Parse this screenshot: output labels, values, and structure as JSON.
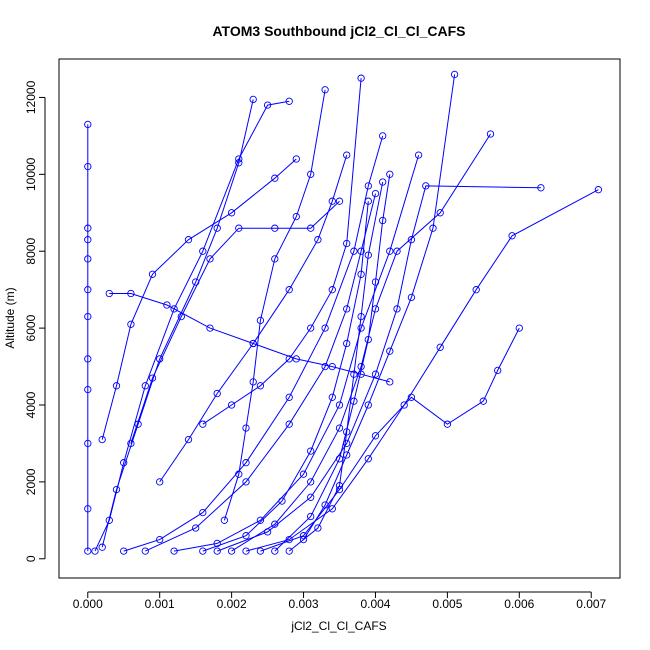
{
  "chart_data": {
    "type": "line",
    "title": "ATOM3 Southbound jCl2_Cl_Cl_CAFS",
    "xlabel": "jCl2_Cl_Cl_CAFS",
    "ylabel": "Altitude (m)",
    "xlim": [
      -0.0004,
      0.0074
    ],
    "ylim": [
      -500,
      13000
    ],
    "x_ticks": [
      "0.000",
      "0.001",
      "0.002",
      "0.003",
      "0.004",
      "0.005",
      "0.006",
      "0.007"
    ],
    "y_ticks": [
      "0",
      "2000",
      "4000",
      "6000",
      "8000",
      "10000",
      "12000"
    ],
    "series_color": "#0000ff",
    "markers": "open-circle",
    "series": [
      {
        "x": [
          0.0,
          0.0,
          0.0,
          0.0,
          0.0,
          0.0,
          0.0,
          0.0,
          0.0,
          0.0,
          0.0,
          0.0
        ],
        "y": [
          200,
          1300,
          3000,
          4400,
          5200,
          6300,
          7000,
          7800,
          8300,
          8600,
          10200,
          11300
        ]
      },
      {
        "x": [
          0.0001,
          0.0003,
          0.0005,
          0.0008,
          0.0012,
          0.0016,
          0.0021,
          0.0025,
          0.0028
        ],
        "y": [
          200,
          1000,
          2500,
          4500,
          6500,
          8000,
          10400,
          11800,
          11900
        ]
      },
      {
        "x": [
          0.0002,
          0.0004,
          0.0007,
          0.001,
          0.0015,
          0.0018,
          0.0021,
          0.0023
        ],
        "y": [
          300,
          1800,
          3500,
          5200,
          7200,
          8600,
          10300,
          11950
        ]
      },
      {
        "x": [
          0.0005,
          0.001,
          0.0016,
          0.0022,
          0.0028,
          0.0033,
          0.0037,
          0.0039,
          0.0041
        ],
        "y": [
          200,
          500,
          1200,
          2500,
          4200,
          6000,
          8000,
          9700,
          11000
        ]
      },
      {
        "x": [
          0.0008,
          0.0015,
          0.0022,
          0.0028,
          0.0033,
          0.0036,
          0.0038,
          0.004
        ],
        "y": [
          200,
          800,
          2000,
          3500,
          5000,
          6500,
          8000,
          9500
        ]
      },
      {
        "x": [
          0.0012,
          0.0018,
          0.0024,
          0.003,
          0.0035,
          0.0038,
          0.0042,
          0.0046
        ],
        "y": [
          200,
          400,
          1000,
          2200,
          4000,
          6000,
          8000,
          10500
        ]
      },
      {
        "x": [
          0.0016,
          0.0022,
          0.0027,
          0.0031,
          0.0034,
          0.0036,
          0.0038,
          0.0039
        ],
        "y": [
          200,
          600,
          1500,
          2800,
          4200,
          5600,
          7400,
          9300
        ]
      },
      {
        "x": [
          0.0018,
          0.0025,
          0.0031,
          0.0036,
          0.004,
          0.0043,
          0.0045,
          0.0047,
          0.0063
        ],
        "y": [
          200,
          700,
          1600,
          3000,
          4800,
          6500,
          8300,
          9700,
          9650
        ]
      },
      {
        "x": [
          0.002,
          0.0026,
          0.0031,
          0.0035,
          0.0038,
          0.004,
          0.0043,
          0.0049,
          0.0056
        ],
        "y": [
          200,
          900,
          2000,
          3400,
          5000,
          6500,
          8000,
          9000,
          11050
        ]
      },
      {
        "x": [
          0.0022,
          0.0028,
          0.0034,
          0.0039,
          0.0044,
          0.0049,
          0.0054,
          0.0059,
          0.0071
        ],
        "y": [
          200,
          500,
          1300,
          2600,
          4000,
          5500,
          7000,
          8400,
          9600
        ]
      },
      {
        "x": [
          0.0024,
          0.003,
          0.0035,
          0.004,
          0.0045,
          0.005,
          0.0055,
          0.0057,
          0.006
        ],
        "y": [
          200,
          600,
          1800,
          3200,
          4200,
          3500,
          4100,
          4900,
          6000
        ]
      },
      {
        "x": [
          0.0026,
          0.0031,
          0.0035,
          0.0037,
          0.0039,
          0.004,
          0.0041,
          0.0042
        ],
        "y": [
          200,
          1100,
          2600,
          4100,
          5700,
          7200,
          8800,
          10000
        ]
      },
      {
        "x": [
          0.0028,
          0.0032,
          0.0035,
          0.0036,
          0.0037,
          0.0038,
          0.0039,
          0.0041
        ],
        "y": [
          200,
          800,
          1900,
          3300,
          4800,
          6300,
          7900,
          9800
        ]
      },
      {
        "x": [
          0.003,
          0.0033,
          0.0036,
          0.0039,
          0.0042,
          0.0045,
          0.0048,
          0.0051
        ],
        "y": [
          500,
          1400,
          2700,
          4000,
          5400,
          6800,
          8600,
          12600
        ]
      },
      {
        "x": [
          0.0019,
          0.0021,
          0.0022,
          0.0023,
          0.0024,
          0.0026,
          0.0029,
          0.0031,
          0.0033
        ],
        "y": [
          1000,
          2200,
          3400,
          4600,
          6200,
          7800,
          8900,
          10000,
          12200
        ]
      },
      {
        "x": [
          0.0016,
          0.002,
          0.0024,
          0.0028,
          0.0031,
          0.0034,
          0.0036,
          0.0038
        ],
        "y": [
          3500,
          4000,
          4500,
          5200,
          6000,
          7000,
          8200,
          12500
        ]
      },
      {
        "x": [
          0.001,
          0.0014,
          0.0018,
          0.0023,
          0.0028,
          0.0032,
          0.0034,
          0.0036
        ],
        "y": [
          2000,
          3100,
          4300,
          5600,
          7000,
          8300,
          9300,
          10500
        ]
      },
      {
        "x": [
          0.0006,
          0.0009,
          0.0013,
          0.0017,
          0.0021,
          0.0026,
          0.0031,
          0.0035
        ],
        "y": [
          3000,
          4700,
          6300,
          7800,
          8600,
          8600,
          8600,
          9300
        ]
      },
      {
        "x": [
          0.0002,
          0.0004,
          0.0006,
          0.0009,
          0.0014,
          0.002,
          0.0026,
          0.0029
        ],
        "y": [
          3100,
          4500,
          6100,
          7400,
          8300,
          9000,
          9900,
          10400
        ]
      },
      {
        "x": [
          0.0003,
          0.0006,
          0.0011,
          0.0017,
          0.0023,
          0.0029,
          0.0034,
          0.0038,
          0.0042
        ],
        "y": [
          6900,
          6900,
          6600,
          6000,
          5600,
          5200,
          5000,
          4800,
          4600
        ]
      }
    ]
  }
}
